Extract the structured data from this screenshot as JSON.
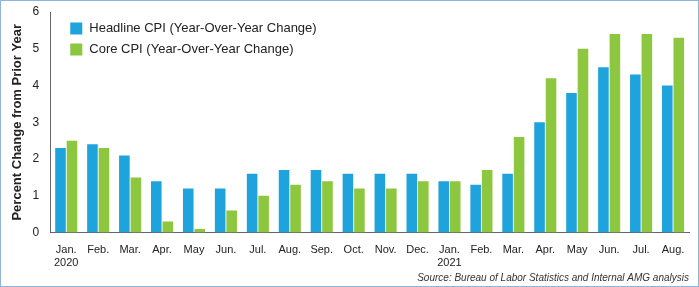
{
  "chart_data": {
    "type": "bar",
    "y_label": "Percent Change from Prior Year",
    "categories": [
      [
        "Jan.",
        "2020"
      ],
      "Feb.",
      "Mar.",
      "Apr.",
      "May",
      "Jun.",
      "Jul.",
      "Aug.",
      "Sep.",
      "Oct.",
      "Nov.",
      "Dec.",
      [
        "Jan.",
        "2021"
      ],
      "Feb.",
      "Mar.",
      "Apr.",
      "May",
      "Jun.",
      "Jul.",
      "Aug."
    ],
    "series": [
      {
        "name": "Headline CPI (Year-Over-Year Change)",
        "color": "#1ea3dc",
        "values": [
          2.3,
          2.4,
          2.1,
          1.4,
          1.2,
          1.2,
          1.6,
          1.7,
          1.7,
          1.6,
          1.6,
          1.6,
          1.4,
          1.3,
          1.6,
          3.0,
          3.8,
          4.5,
          4.3,
          4.0
        ]
      },
      {
        "name": "Core CPI (Year-Over-Year Change)",
        "color": "#8dc63f",
        "values": [
          2.5,
          2.3,
          1.5,
          0.3,
          0.1,
          0.6,
          1.0,
          1.3,
          1.4,
          1.2,
          1.2,
          1.4,
          1.4,
          1.7,
          2.6,
          4.2,
          5.0,
          5.4,
          5.4,
          5.3
        ]
      }
    ],
    "ylim": [
      0,
      6
    ],
    "yticks": [
      0,
      1,
      2,
      3,
      4,
      5,
      6
    ],
    "grid": false,
    "legend": "top left",
    "source": "Source: Bureau of Labor Statistics and Internal AMG analysis"
  }
}
